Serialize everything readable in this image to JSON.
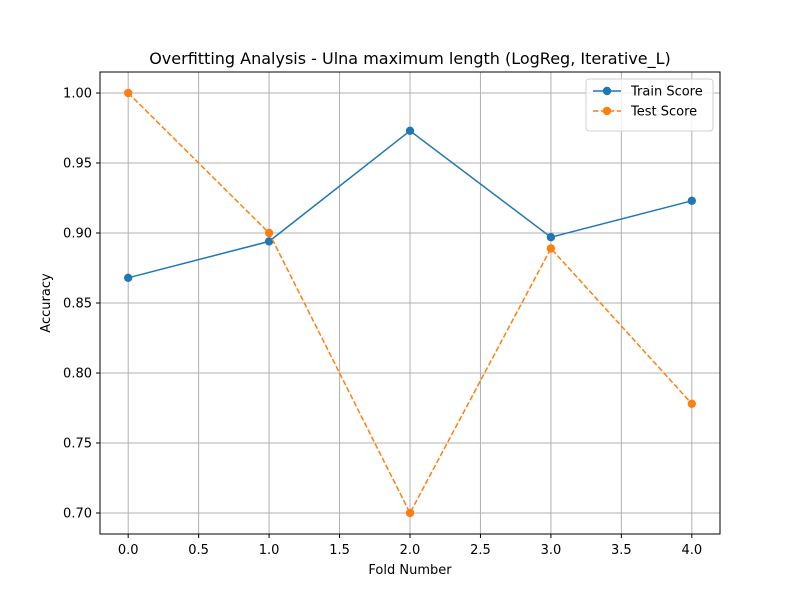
{
  "chart_data": {
    "type": "line",
    "title": "Overfitting Analysis - Ulna maximum length (LogReg, Iterative_L)",
    "xlabel": "Fold Number",
    "ylabel": "Accuracy",
    "xlim": [
      -0.2,
      4.2
    ],
    "ylim": [
      0.685,
      1.015
    ],
    "x_ticks": [
      "0.0",
      "0.5",
      "1.0",
      "1.5",
      "2.0",
      "2.5",
      "3.0",
      "3.5",
      "4.0"
    ],
    "y_ticks": [
      "0.70",
      "0.75",
      "0.80",
      "0.85",
      "0.90",
      "0.95",
      "1.00"
    ],
    "grid": true,
    "legend_position": "top-right",
    "x": [
      0,
      1,
      2,
      3,
      4
    ],
    "series": [
      {
        "name": "Train Score",
        "values": [
          0.868,
          0.894,
          0.973,
          0.897,
          0.923
        ],
        "color": "#1f77b4",
        "line_style": "solid",
        "marker": "circle"
      },
      {
        "name": "Test Score",
        "values": [
          1.0,
          0.9,
          0.7,
          0.889,
          0.778
        ],
        "color": "#ff7f0e",
        "line_style": "dashed",
        "marker": "circle"
      }
    ]
  }
}
